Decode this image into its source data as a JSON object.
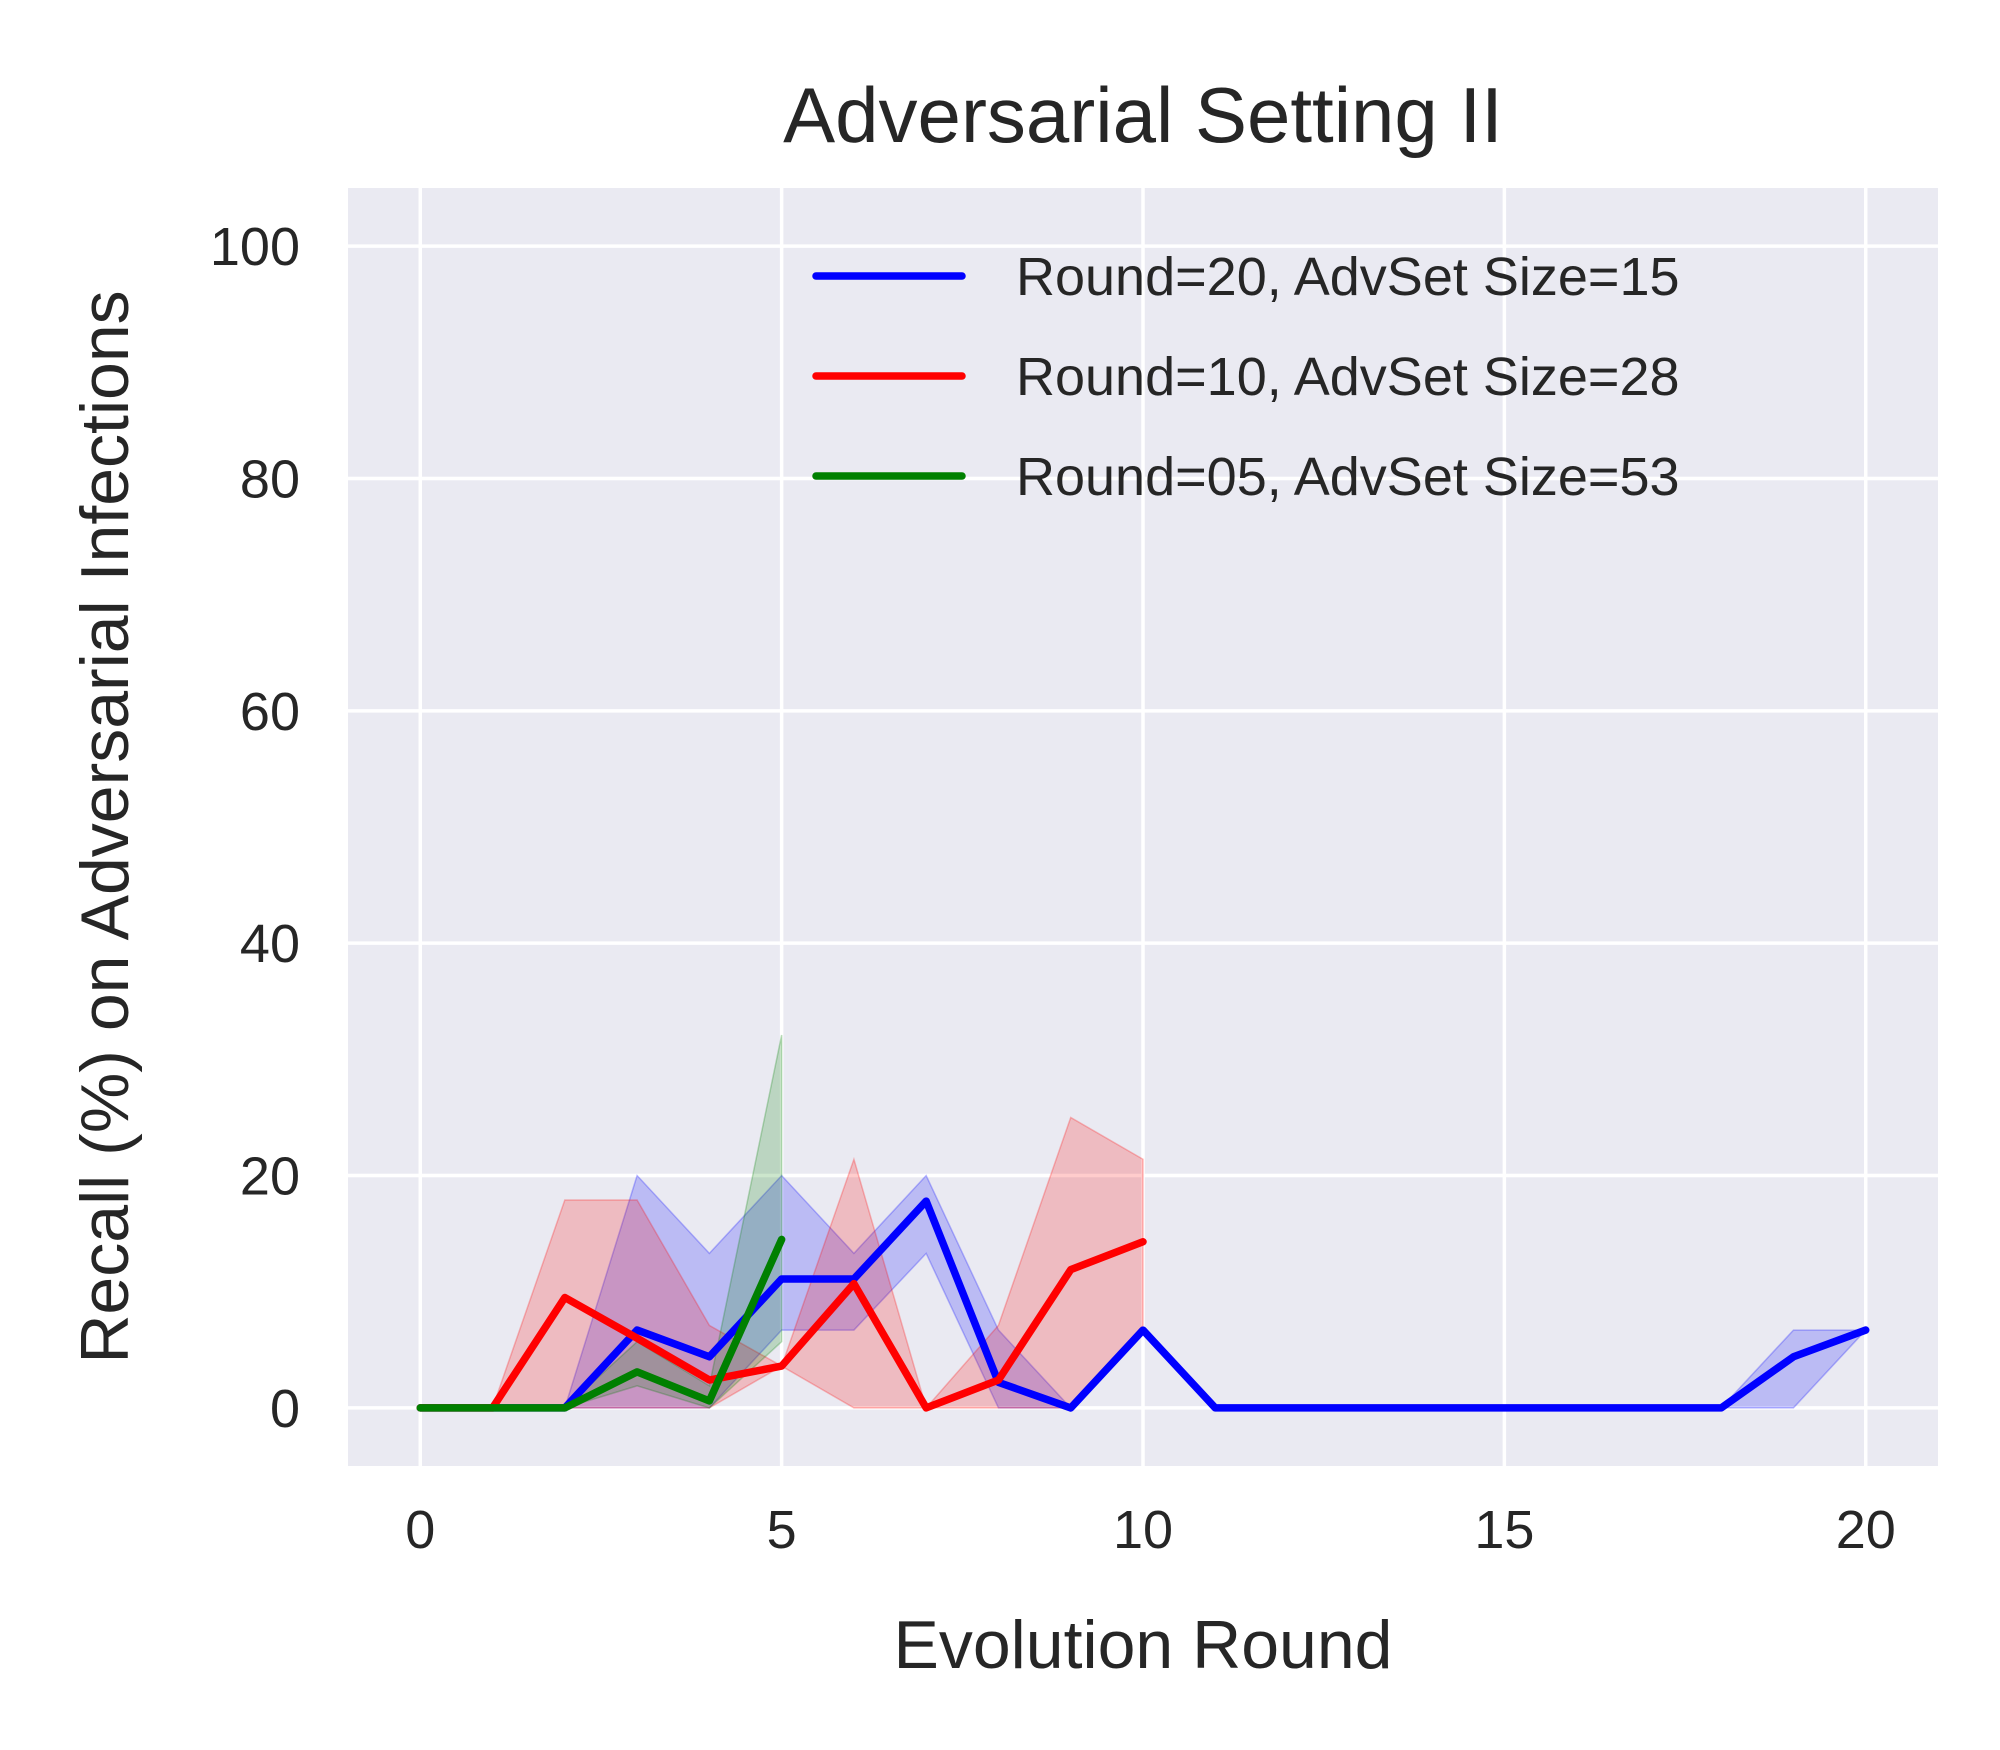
{
  "chart_data": {
    "type": "line",
    "title": "Adversarial Setting II",
    "xlabel": "Evolution Round",
    "ylabel": "Recall (%) on Adversarial Infections",
    "xlim": [
      -1,
      21
    ],
    "ylim": [
      -5,
      105
    ],
    "xticks": [
      0,
      5,
      10,
      15,
      20
    ],
    "yticks": [
      0,
      20,
      40,
      60,
      80,
      100
    ],
    "grid": true,
    "legend_position": "top-right",
    "background": "#eaeaf2",
    "series": [
      {
        "name": "Round=20, AdvSet Size=15",
        "color": "#0000ff",
        "x": [
          0,
          1,
          2,
          3,
          4,
          5,
          6,
          7,
          8,
          9,
          10,
          11,
          12,
          13,
          14,
          15,
          16,
          17,
          18,
          19,
          20
        ],
        "y": [
          0,
          0,
          0,
          6.7,
          4.4,
          11.1,
          11.1,
          17.8,
          2.2,
          0,
          6.7,
          0,
          0,
          0,
          0,
          0,
          0,
          0,
          0,
          4.4,
          6.7
        ],
        "lower": [
          0,
          0,
          0,
          0,
          0,
          6.7,
          6.7,
          13.3,
          0,
          0,
          6.7,
          0,
          0,
          0,
          0,
          0,
          0,
          0,
          0,
          0,
          6.7
        ],
        "upper": [
          0,
          0,
          0,
          20,
          13.3,
          20,
          13.3,
          20,
          6.7,
          0,
          6.7,
          0,
          0,
          0,
          0,
          0,
          0,
          0,
          0,
          6.7,
          6.7
        ]
      },
      {
        "name": "Round=10, AdvSet Size=28",
        "color": "#ff0000",
        "x": [
          0,
          1,
          2,
          3,
          4,
          5,
          6,
          7,
          8,
          9,
          10
        ],
        "y": [
          0,
          0,
          9.5,
          6.0,
          2.4,
          3.6,
          10.7,
          0,
          2.4,
          11.9,
          14.3
        ],
        "lower": [
          0,
          0,
          0,
          0,
          0,
          3.6,
          0,
          0,
          0,
          0,
          7.1
        ],
        "upper": [
          0,
          0,
          17.9,
          17.9,
          7.1,
          3.6,
          21.4,
          0,
          7.1,
          25.0,
          21.4
        ]
      },
      {
        "name": "Round=05, AdvSet Size=53",
        "color": "#008000",
        "x": [
          0,
          1,
          2,
          3,
          4,
          5
        ],
        "y": [
          0,
          0,
          0,
          3.1,
          0.6,
          14.5
        ],
        "lower": [
          0,
          0,
          0,
          1.9,
          0,
          5.7
        ],
        "upper": [
          0,
          0,
          0,
          5.7,
          1.9,
          32.1
        ]
      }
    ]
  }
}
